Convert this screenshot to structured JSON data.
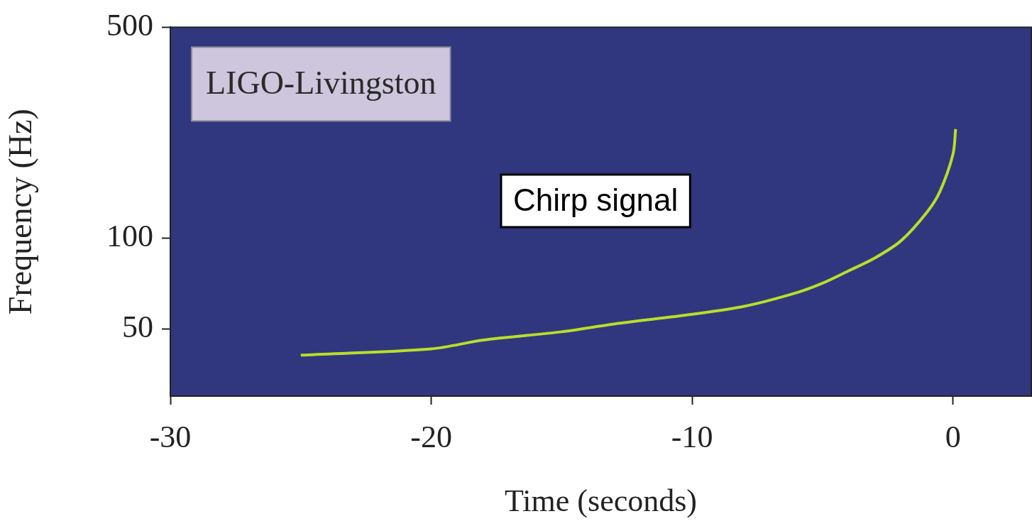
{
  "chart_data": {
    "type": "line",
    "title": "LIGO-Livingston",
    "annotations": [
      {
        "text": "Chirp signal",
        "x": -13.7,
        "y": 133
      }
    ],
    "x_label": "Time (seconds)",
    "y_label": "Frequency (Hz)",
    "x": [
      -25,
      -20,
      -18,
      -15,
      -13,
      -10,
      -8,
      -6,
      -5,
      -4,
      -3,
      -2,
      -1,
      -0.5,
      0,
      0.1
    ],
    "values": [
      41,
      43,
      46,
      49,
      52,
      56,
      59.5,
      66,
      71,
      78,
      86,
      98,
      122,
      143,
      190,
      230
    ],
    "color": "#b8de29",
    "xlim": [
      -30,
      3
    ],
    "xticks": [
      -30,
      -20,
      -10,
      0
    ],
    "ylim": [
      30,
      500
    ],
    "yticks": [
      50,
      100,
      500
    ],
    "log": "y",
    "grid": false
  }
}
